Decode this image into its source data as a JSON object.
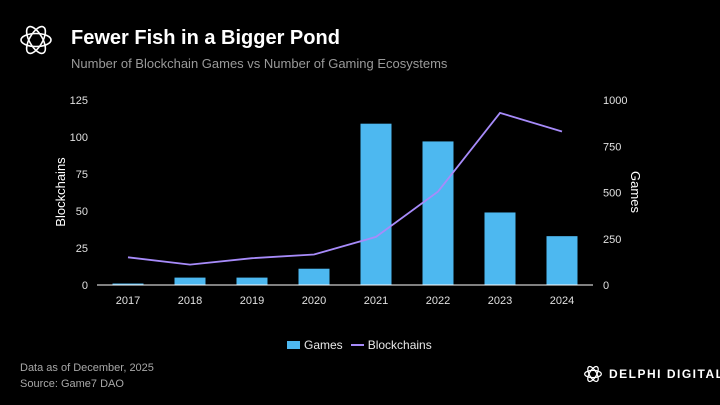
{
  "header": {
    "title": "Fewer Fish in a Bigger Pond",
    "subtitle": "Number of Blockchain Games vs Number of Gaming Ecosystems"
  },
  "legend": {
    "games": "Games",
    "blockchains": "Blockchains"
  },
  "footer": {
    "note": "Data as of December, 2025",
    "source": "Source: Game7 DAO",
    "brand": "DELPHI DIGITAL"
  },
  "colors": {
    "bars": "#4db8f0",
    "line": "#a78bfa",
    "axis_text": "#e0e0e0",
    "background": "#000000"
  },
  "chart_data": {
    "type": "bar",
    "title": "Fewer Fish in a Bigger Pond",
    "subtitle": "Number of Blockchain Games vs Number of Gaming Ecosystems",
    "categories": [
      "2017",
      "2018",
      "2019",
      "2020",
      "2021",
      "2022",
      "2023",
      "2024"
    ],
    "series": [
      {
        "name": "Games",
        "type": "bar",
        "axis": "left",
        "values": [
          1,
          5,
          5,
          11,
          109,
          97,
          49,
          33
        ]
      },
      {
        "name": "Blockchains",
        "type": "line",
        "axis": "right",
        "values": [
          150,
          110,
          145,
          165,
          260,
          505,
          930,
          830
        ]
      }
    ],
    "ylabel_left": "Blockchains",
    "ylabel_right": "Games",
    "ylim_left": [
      0,
      125
    ],
    "ylim_right": [
      0,
      1000
    ],
    "yticks_left": [
      "0",
      "25",
      "50",
      "75",
      "100",
      "125"
    ],
    "yticks_right": [
      "0",
      "250",
      "500",
      "750",
      "1000"
    ],
    "grid": false,
    "legend_position": "bottom-center"
  }
}
